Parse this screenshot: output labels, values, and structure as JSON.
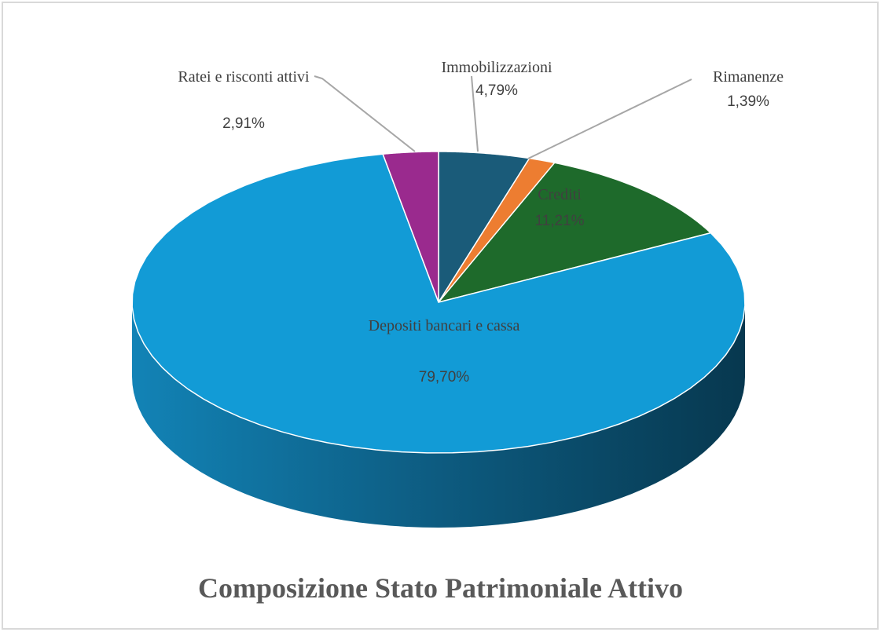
{
  "chart_data": {
    "type": "pie3d",
    "title": "Composizione Stato Patrimoniale Attivo",
    "categories": [
      "Immobilizzazioni",
      "Rimanenze",
      "Crediti",
      "Depositi bancari e cassa",
      "Ratei e risconti attivi"
    ],
    "values": [
      4.79,
      1.39,
      11.21,
      79.7,
      2.91
    ],
    "value_labels": [
      "4,79%",
      "1,39%",
      "11,21%",
      "79,70%",
      "2,91%"
    ],
    "colors": [
      "#1a5b79",
      "#ed7d31",
      "#1e6a2b",
      "#129bd6",
      "#9a2a8e"
    ]
  }
}
